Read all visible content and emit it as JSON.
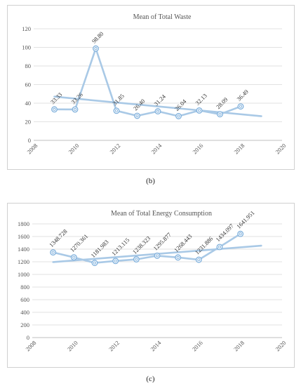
{
  "chart_data": [
    {
      "type": "line",
      "title": "Mean of Total Waste",
      "xlabel": "",
      "ylabel": "",
      "xlim": [
        2008,
        2020
      ],
      "ylim": [
        0,
        120
      ],
      "x_ticks": [
        2008,
        2010,
        2012,
        2014,
        2016,
        2018,
        2020
      ],
      "y_ticks": [
        0,
        20,
        40,
        60,
        80,
        100,
        120
      ],
      "grid": true,
      "series": [
        {
          "x": [
            2009,
            2010,
            2011,
            2012,
            2013,
            2014,
            2015,
            2016,
            2017,
            2018
          ],
          "values": [
            33.33,
            33.26,
            98.8,
            31.85,
            26.4,
            31.24,
            26.04,
            32.13,
            28.09,
            36.49
          ],
          "labels": [
            "33.33",
            "33.26",
            "98.80",
            "31.85",
            "26.40",
            "31.24",
            "26.04",
            "32.13",
            "28.09",
            "36.49"
          ]
        }
      ],
      "trendline": {
        "x": [
          2009,
          2019
        ],
        "values": [
          47,
          26
        ]
      },
      "colors": {
        "series": "#a9c9e6",
        "grid": "#e2e2e2",
        "axis": "#bfbfbf"
      }
    },
    {
      "type": "line",
      "title": "Mean of Total Energy Consumption",
      "xlabel": "",
      "ylabel": "",
      "xlim": [
        2008,
        2020
      ],
      "ylim": [
        0,
        1800
      ],
      "x_ticks": [
        2008,
        2010,
        2012,
        2014,
        2016,
        2018,
        2020
      ],
      "y_ticks": [
        0,
        200,
        400,
        600,
        800,
        1000,
        1200,
        1400,
        1600,
        1800
      ],
      "grid": true,
      "series": [
        {
          "x": [
            2009,
            2010,
            2011,
            2012,
            2013,
            2014,
            2015,
            2016,
            2017,
            2018
          ],
          "values": [
            1348.728,
            1270.361,
            1181.983,
            1213.115,
            1238.323,
            1295.877,
            1268.443,
            1231.886,
            1434.097,
            1641.951
          ],
          "labels": [
            "1348.728",
            "1270.361",
            "1181.983",
            "1213.115",
            "1238.323",
            "1295.877",
            "1268.443",
            "1231.886",
            "1434.097",
            "1641.951"
          ]
        }
      ],
      "trendline": {
        "x": [
          2009,
          2019
        ],
        "values": [
          1195,
          1455
        ]
      },
      "colors": {
        "series": "#a9c9e6",
        "grid": "#e2e2e2",
        "axis": "#bfbfbf"
      }
    }
  ],
  "figure_labels": {
    "b": "(b)",
    "c": "(c)"
  }
}
